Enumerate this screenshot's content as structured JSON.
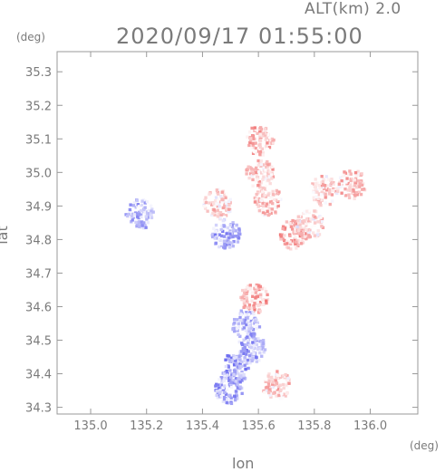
{
  "chart_data": {
    "type": "heatmap",
    "title": "2020/09/17 01:55:00",
    "subtitle": "ALT(km) 2.0",
    "xlabel": "lon",
    "ylabel": "lat",
    "x_unit": "(deg)",
    "y_unit": "(deg)",
    "xlim": [
      134.88,
      136.17
    ],
    "ylim": [
      34.28,
      35.36
    ],
    "x_ticks": [
      135.0,
      135.2,
      135.4,
      135.6,
      135.8,
      136.0
    ],
    "x_tick_labels": [
      "135.0",
      "135.2",
      "135.4",
      "135.6",
      "135.8",
      "136.0"
    ],
    "y_ticks": [
      34.3,
      34.4,
      34.5,
      34.6,
      34.7,
      34.8,
      34.9,
      35.0,
      35.1,
      35.2,
      35.3
    ],
    "y_tick_labels": [
      "34.3",
      "34.4",
      "34.5",
      "34.6",
      "34.7",
      "34.8",
      "34.9",
      "35.0",
      "35.1",
      "35.2",
      "35.3"
    ],
    "grid": false,
    "colors": {
      "positive": "#f08080",
      "negative": "#8080f0",
      "axis": "#999999"
    },
    "regions": [
      {
        "lon": 135.6,
        "lat": 35.0,
        "level": 0.35
      },
      {
        "lon": 135.6,
        "lat": 35.1,
        "level": 0.45
      },
      {
        "lon": 135.63,
        "lat": 34.92,
        "level": 0.35
      },
      {
        "lon": 135.45,
        "lat": 34.91,
        "level": 0.25
      },
      {
        "lon": 135.83,
        "lat": 34.95,
        "level": 0.3
      },
      {
        "lon": 135.93,
        "lat": 34.97,
        "level": 0.35
      },
      {
        "lon": 135.17,
        "lat": 34.88,
        "level": -0.4
      },
      {
        "lon": 135.48,
        "lat": 34.82,
        "level": -0.5
      },
      {
        "lon": 135.72,
        "lat": 34.82,
        "level": 0.55
      },
      {
        "lon": 135.78,
        "lat": 34.85,
        "level": 0.2
      },
      {
        "lon": 135.58,
        "lat": 34.63,
        "level": 0.5
      },
      {
        "lon": 135.55,
        "lat": 34.55,
        "level": -0.45
      },
      {
        "lon": 135.57,
        "lat": 34.48,
        "level": -0.55
      },
      {
        "lon": 135.51,
        "lat": 34.42,
        "level": -0.6
      },
      {
        "lon": 135.49,
        "lat": 34.36,
        "level": -0.5
      },
      {
        "lon": 135.66,
        "lat": 34.37,
        "level": 0.3
      }
    ]
  }
}
